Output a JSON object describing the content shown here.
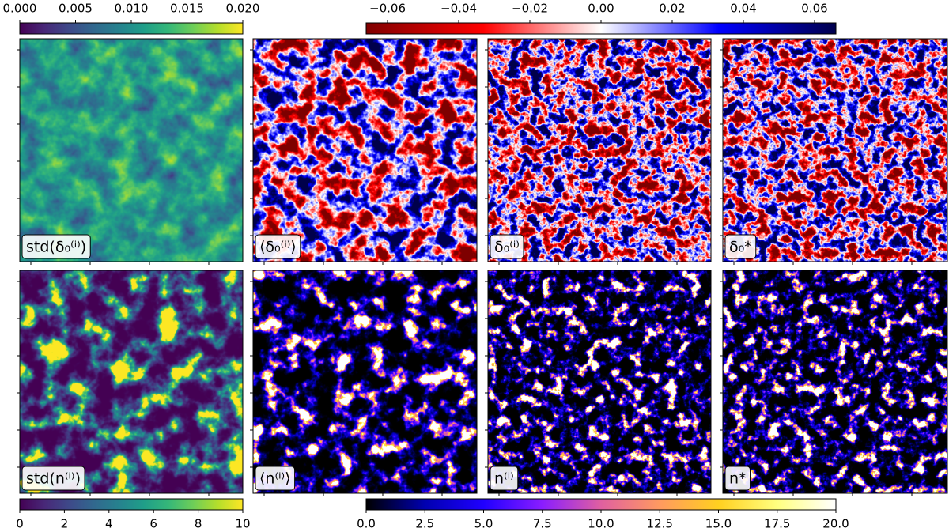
{
  "chart_data": {
    "type": "image-grid",
    "rows": [
      {
        "panels": [
          {
            "label": "std(δ₀⁽ⁱ⁾)"
          },
          {
            "label": "⟨δ₀⁽ⁱ⁾⟩"
          },
          {
            "label": "δ₀⁽ⁱ⁾"
          },
          {
            "label": "δ₀*"
          }
        ],
        "colorbars": [
          {
            "xlim": [
              0,
              0.02
            ],
            "xticks": [
              {
                "value": 0,
                "label": "0.000"
              },
              {
                "value": 0.005,
                "label": "0.005"
              },
              {
                "value": 0.01,
                "label": "0.010"
              },
              {
                "value": 0.015,
                "label": "0.015"
              },
              {
                "value": 0.02,
                "label": "0.020"
              }
            ],
            "colors": [
              "#440154",
              "#482878",
              "#3e4989",
              "#31688e",
              "#26828e",
              "#1f9e89",
              "#35b779",
              "#6ece58",
              "#b5de2b",
              "#fde725"
            ]
          },
          {
            "xlim": [
              -0.066,
              0.066
            ],
            "xticks": [
              {
                "value": -0.06,
                "label": "−0.06"
              },
              {
                "value": -0.04,
                "label": "−0.04"
              },
              {
                "value": -0.02,
                "label": "−0.02"
              },
              {
                "value": 0,
                "label": "0.00"
              },
              {
                "value": 0.02,
                "label": "0.02"
              },
              {
                "value": 0.04,
                "label": "0.04"
              },
              {
                "value": 0.06,
                "label": "0.06"
              }
            ],
            "colors": [
              "#7f0000",
              "#ff0000",
              "#ffffff",
              "#0000ff",
              "#00004c"
            ]
          }
        ]
      },
      {
        "panels": [
          {
            "label": "std(n⁽ⁱ⁾)"
          },
          {
            "label": "⟨n⁽ⁱ⁾⟩"
          },
          {
            "label": "n⁽ⁱ⁾"
          },
          {
            "label": "n*"
          }
        ],
        "colorbars": [
          {
            "xlim": [
              0,
              10
            ],
            "xticks": [
              0,
              2,
              4,
              6,
              8,
              10
            ],
            "colors": [
              "#440154",
              "#482878",
              "#3e4989",
              "#31688e",
              "#26828e",
              "#1f9e89",
              "#35b779",
              "#6ece58",
              "#b5de2b",
              "#fde725"
            ]
          },
          {
            "xlim": [
              0,
              20
            ],
            "xticks": [
              {
                "value": 0,
                "label": "0.0"
              },
              2.5,
              {
                "value": 5,
                "label": "5.0"
              },
              7.5,
              {
                "value": 10,
                "label": "10.0"
              },
              12.5,
              {
                "value": 15,
                "label": "15.0"
              },
              17.5,
              {
                "value": 20,
                "label": "20.0"
              }
            ],
            "colors": [
              "#000000",
              "#0000b0",
              "#2000ff",
              "#8a1dff",
              "#e060a0",
              "#ff9a60",
              "#ffd020",
              "#ffff80",
              "#ffffff"
            ]
          }
        ]
      }
    ]
  }
}
